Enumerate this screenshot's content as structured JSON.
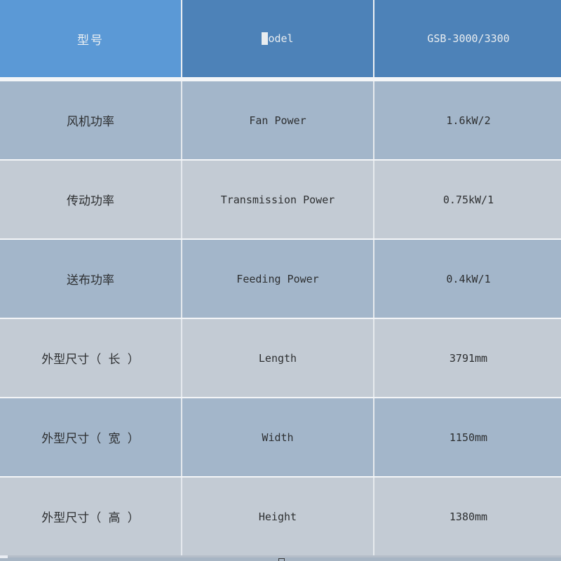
{
  "chart_data": {
    "type": "table",
    "columns": [
      "型号",
      "Model",
      "GSB-3000/3300"
    ],
    "rows": [
      [
        "风机功率",
        "Fan Power",
        "1.6kW/2"
      ],
      [
        "传动功率",
        "Transmission Power",
        "0.75kW/1"
      ],
      [
        "送布功率",
        "Feeding Power",
        "0.4kW/1"
      ],
      [
        "外型尺寸（ 长 ）",
        "Length",
        "3791mm"
      ],
      [
        "外型尺寸（ 宽 ）",
        "Width",
        "1150mm"
      ],
      [
        "外型尺寸（ 高 ）",
        "Height",
        "1380mm"
      ]
    ],
    "layout": {
      "grid": "3 columns, header row + 6 data rows, all cells centered",
      "legend_position": "none",
      "row_striping": "odd rows dark blue-gray, even rows light gray"
    }
  },
  "colors": {
    "header_primary": "#5b99d6",
    "header_secondary": "#4d82b8",
    "row_dark": "#a3b6ca",
    "row_light": "#c3cbd4",
    "separator": "#e6eaee",
    "cutoff_strip": "#a7b5c4",
    "text_body": "#2d2f31",
    "text_header": "#eef1f3"
  }
}
